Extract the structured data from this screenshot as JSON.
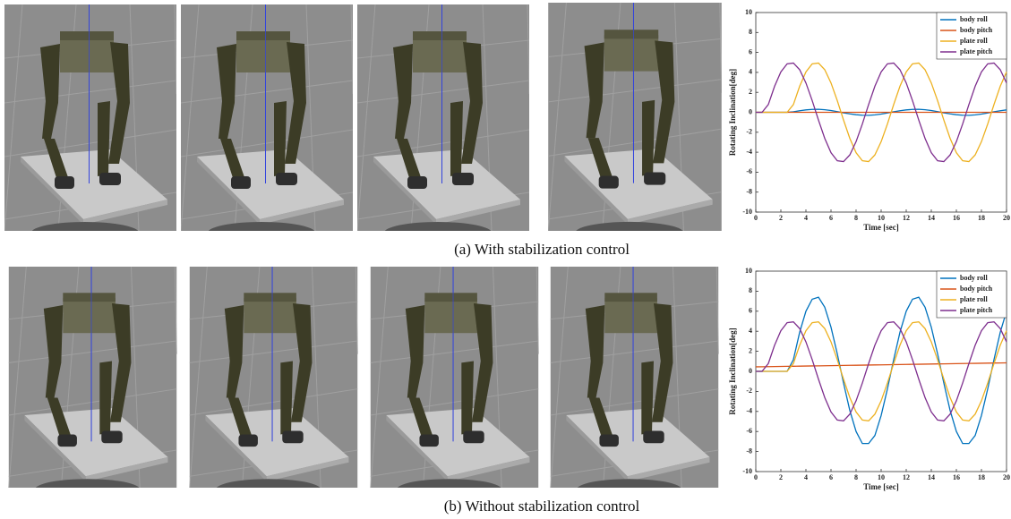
{
  "captions": [
    "(a) With stabilization control",
    "(b) Without stabilization control"
  ],
  "chart_data": [
    {
      "type": "line",
      "xlabel": "Time [sec]",
      "ylabel": "Rotating Inclination[deg]",
      "xlim": [
        0,
        20
      ],
      "xticks": [
        0,
        2,
        4,
        6,
        8,
        10,
        12,
        14,
        16,
        18,
        20
      ],
      "ylim": [
        -10,
        10
      ],
      "yticks": [
        -10,
        -8,
        -6,
        -4,
        -2,
        0,
        2,
        4,
        6,
        8,
        10
      ],
      "legend": "upper right",
      "x": [
        0,
        0.5,
        1,
        1.5,
        2,
        2.5,
        3,
        3.5,
        4,
        4.5,
        5,
        5.5,
        6,
        6.5,
        7,
        7.5,
        8,
        8.5,
        9,
        9.5,
        10,
        10.5,
        11,
        11.5,
        12,
        12.5,
        13,
        13.5,
        14,
        14.5,
        15,
        15.5,
        16,
        16.5,
        17,
        17.5,
        18,
        18.5,
        19,
        19.5,
        20
      ],
      "series": [
        {
          "name": "body roll",
          "color": "#0072bd",
          "values": [
            0,
            0,
            0,
            0,
            0,
            0,
            0.05,
            0.16,
            0.24,
            0.29,
            0.3,
            0.26,
            0.18,
            0.07,
            -0.05,
            -0.16,
            -0.24,
            -0.29,
            -0.3,
            -0.26,
            -0.18,
            -0.07,
            0.05,
            0.16,
            0.24,
            0.29,
            0.3,
            0.26,
            0.18,
            0.07,
            -0.05,
            -0.16,
            -0.24,
            -0.29,
            -0.3,
            -0.26,
            -0.18,
            -0.07,
            0.05,
            0.16,
            0.24
          ]
        },
        {
          "name": "body pitch",
          "color": "#d95319",
          "values": [
            0,
            0,
            0,
            0,
            0,
            0,
            0,
            0,
            0,
            0,
            0,
            0,
            0,
            0,
            0,
            0,
            0,
            0,
            0,
            0,
            0,
            0,
            0,
            0,
            0,
            0,
            0,
            0,
            0,
            0,
            0,
            0,
            0,
            0,
            0,
            0,
            0,
            0,
            0,
            0,
            0
          ]
        },
        {
          "name": "plate roll",
          "color": "#edb120",
          "values": [
            0,
            0,
            0,
            0,
            0,
            0,
            0.78,
            2.61,
            4.05,
            4.86,
            4.94,
            4.27,
            2.94,
            1.17,
            -0.78,
            -2.61,
            -4.05,
            -4.86,
            -4.94,
            -4.27,
            -2.94,
            -1.17,
            0.78,
            2.61,
            4.05,
            4.86,
            4.94,
            4.27,
            2.94,
            1.17,
            -0.78,
            -2.61,
            -4.05,
            -4.86,
            -4.94,
            -4.27,
            -2.94,
            -1.17,
            0.78,
            2.61,
            4.05
          ]
        },
        {
          "name": "plate pitch",
          "color": "#7e2f8e",
          "values": [
            0,
            0,
            0.78,
            2.61,
            4.05,
            4.86,
            4.94,
            4.27,
            2.94,
            1.17,
            -0.78,
            -2.61,
            -4.05,
            -4.86,
            -4.94,
            -4.27,
            -2.94,
            -1.17,
            0.78,
            2.61,
            4.05,
            4.86,
            4.94,
            4.27,
            2.94,
            1.17,
            -0.78,
            -2.61,
            -4.05,
            -4.86,
            -4.94,
            -4.27,
            -2.94,
            -1.17,
            0.78,
            2.61,
            4.05,
            4.86,
            4.94,
            4.27,
            2.94
          ]
        }
      ]
    },
    {
      "type": "line",
      "xlabel": "Time [sec]",
      "ylabel": "Rotating Inclination[deg]",
      "xlim": [
        0,
        20
      ],
      "xticks": [
        0,
        2,
        4,
        6,
        8,
        10,
        12,
        14,
        16,
        18,
        20
      ],
      "ylim": [
        -10,
        10
      ],
      "yticks": [
        -10,
        -8,
        -6,
        -4,
        -2,
        0,
        2,
        4,
        6,
        8,
        10
      ],
      "legend": "upper right",
      "x": [
        0,
        0.5,
        1,
        1.5,
        2,
        2.5,
        3,
        3.5,
        4,
        4.5,
        5,
        5.5,
        6,
        6.5,
        7,
        7.5,
        8,
        8.5,
        9,
        9.5,
        10,
        10.5,
        11,
        11.5,
        12,
        12.5,
        13,
        13.5,
        14,
        14.5,
        15,
        15.5,
        16,
        16.5,
        17,
        17.5,
        18,
        18.5,
        19,
        19.5,
        20
      ],
      "series": [
        {
          "name": "body roll",
          "color": "#0072bd",
          "values": [
            0,
            0,
            0,
            0,
            0,
            0,
            1.17,
            3.9,
            6.0,
            7.2,
            7.4,
            6.4,
            4.4,
            1.75,
            -1.17,
            -3.9,
            -6.0,
            -7.2,
            -7.2,
            -6.4,
            -4.4,
            -1.75,
            1.17,
            3.9,
            6.0,
            7.2,
            7.4,
            6.4,
            4.4,
            1.75,
            -1.17,
            -3.9,
            -6.0,
            -7.2,
            -7.2,
            -6.4,
            -4.4,
            -1.75,
            1.17,
            3.9,
            6.0
          ]
        },
        {
          "name": "body pitch",
          "color": "#d95319",
          "values": [
            0.45,
            0.46,
            0.47,
            0.48,
            0.49,
            0.5,
            0.51,
            0.52,
            0.53,
            0.54,
            0.55,
            0.56,
            0.57,
            0.58,
            0.59,
            0.6,
            0.61,
            0.62,
            0.63,
            0.64,
            0.65,
            0.66,
            0.67,
            0.68,
            0.69,
            0.7,
            0.71,
            0.72,
            0.73,
            0.74,
            0.75,
            0.76,
            0.77,
            0.78,
            0.79,
            0.8,
            0.81,
            0.82,
            0.83,
            0.84,
            0.85
          ]
        },
        {
          "name": "plate roll",
          "color": "#edb120",
          "values": [
            0,
            0,
            0,
            0,
            0,
            0,
            0.78,
            2.61,
            4.05,
            4.86,
            4.94,
            4.27,
            2.94,
            1.17,
            -0.78,
            -2.61,
            -4.05,
            -4.86,
            -4.94,
            -4.27,
            -2.94,
            -1.17,
            0.78,
            2.61,
            4.05,
            4.86,
            4.94,
            4.27,
            2.94,
            1.17,
            -0.78,
            -2.61,
            -4.05,
            -4.86,
            -4.94,
            -4.27,
            -2.94,
            -1.17,
            0.78,
            2.61,
            4.05
          ]
        },
        {
          "name": "plate pitch",
          "color": "#7e2f8e",
          "values": [
            0,
            0,
            0.78,
            2.61,
            4.05,
            4.86,
            4.94,
            4.27,
            2.94,
            1.17,
            -0.78,
            -2.61,
            -4.05,
            -4.86,
            -4.94,
            -4.27,
            -2.94,
            -1.17,
            0.78,
            2.61,
            4.05,
            4.86,
            4.94,
            4.27,
            2.94,
            1.17,
            -0.78,
            -2.61,
            -4.05,
            -4.86,
            -4.94,
            -4.27,
            -2.94,
            -1.17,
            0.78,
            2.61,
            4.05,
            4.86,
            4.94,
            4.27,
            2.94
          ]
        }
      ]
    }
  ]
}
